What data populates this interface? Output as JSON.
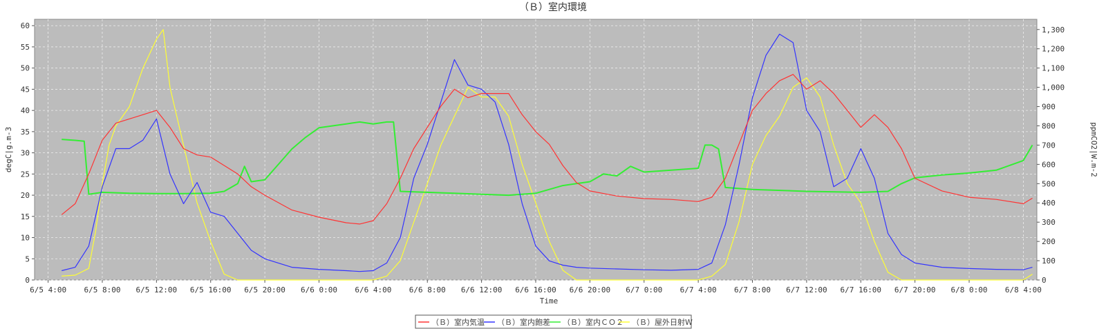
{
  "chart_data": {
    "type": "line",
    "title": "（Ｂ）室内環境",
    "xlabel": "Time",
    "ylabel_left": "degC|g.m-3",
    "ylabel_right": "ppmCO2|W.m-2",
    "xlim": [
      "6/5 3:00",
      "6/8 5:00"
    ],
    "ylim_left": [
      0,
      61.5
    ],
    "ylim_right": [
      0,
      1353
    ],
    "grid": true,
    "legend_position": "bottom-center",
    "x_ticks": [
      "6/5 4:00",
      "6/5 8:00",
      "6/5 12:00",
      "6/5 16:00",
      "6/5 20:00",
      "6/6 0:00",
      "6/6 4:00",
      "6/6 8:00",
      "6/6 12:00",
      "6/6 16:00",
      "6/6 20:00",
      "6/7 0:00",
      "6/7 4:00",
      "6/7 8:00",
      "6/7 12:00",
      "6/7 16:00",
      "6/7 20:00",
      "6/8 0:00",
      "6/8 4:00"
    ],
    "y_ticks_left": [
      "0",
      "5",
      "10",
      "15",
      "20",
      "25",
      "30",
      "35",
      "40",
      "45",
      "50",
      "55",
      "60"
    ],
    "y_ticks_right": [
      "0",
      "100",
      "200",
      "300",
      "400",
      "500",
      "600",
      "700",
      "800",
      "900",
      "1,000",
      "1,100",
      "1,200",
      "1,300"
    ],
    "series": [
      {
        "name": "（Ｂ）室内気温",
        "axis": "left",
        "color": "#ff3333",
        "x": [
          "6/5 5:00",
          "6/5 6:00",
          "6/5 7:00",
          "6/5 8:00",
          "6/5 9:00",
          "6/5 10:00",
          "6/5 11:00",
          "6/5 12:00",
          "6/5 13:00",
          "6/5 14:00",
          "6/5 15:00",
          "6/5 16:00",
          "6/5 17:00",
          "6/5 18:00",
          "6/5 19:00",
          "6/5 20:00",
          "6/5 22:00",
          "6/6 0:00",
          "6/6 2:00",
          "6/6 3:00",
          "6/6 4:00",
          "6/6 5:00",
          "6/6 6:00",
          "6/6 7:00",
          "6/6 8:00",
          "6/6 9:00",
          "6/6 10:00",
          "6/6 11:00",
          "6/6 12:00",
          "6/6 13:00",
          "6/6 14:00",
          "6/6 15:00",
          "6/6 16:00",
          "6/6 17:00",
          "6/6 18:00",
          "6/6 19:00",
          "6/6 20:00",
          "6/6 22:00",
          "6/7 0:00",
          "6/7 2:00",
          "6/7 4:00",
          "6/7 5:00",
          "6/7 6:00",
          "6/7 7:00",
          "6/7 8:00",
          "6/7 9:00",
          "6/7 10:00",
          "6/7 11:00",
          "6/7 12:00",
          "6/7 13:00",
          "6/7 14:00",
          "6/7 15:00",
          "6/7 16:00",
          "6/7 17:00",
          "6/7 18:00",
          "6/7 19:00",
          "6/7 20:00",
          "6/7 22:00",
          "6/8 0:00",
          "6/8 2:00",
          "6/8 4:00",
          "6/8 4:40"
        ],
        "y": [
          15.4,
          18,
          25,
          33,
          37,
          38,
          39,
          40,
          36,
          31,
          29.5,
          29,
          27,
          25,
          22,
          20,
          16.5,
          14.8,
          13.5,
          13.2,
          14,
          18,
          24,
          31,
          36,
          41,
          45,
          43,
          44,
          44,
          44,
          39,
          35,
          32,
          27,
          23,
          21,
          19.8,
          19.2,
          19,
          18.5,
          19.5,
          24,
          32,
          40,
          44,
          47,
          48.5,
          45,
          47,
          44,
          40,
          36,
          39,
          36,
          31,
          24,
          21,
          19.5,
          19,
          18,
          19.3
        ]
      },
      {
        "name": "（Ｂ）室内飽差",
        "axis": "left",
        "color": "#3333ff",
        "x": [
          "6/5 5:00",
          "6/5 6:00",
          "6/5 7:00",
          "6/5 8:00",
          "6/5 9:00",
          "6/5 10:00",
          "6/5 11:00",
          "6/5 12:00",
          "6/5 13:00",
          "6/5 14:00",
          "6/5 15:00",
          "6/5 16:00",
          "6/5 17:00",
          "6/5 18:00",
          "6/5 19:00",
          "6/5 20:00",
          "6/5 22:00",
          "6/6 0:00",
          "6/6 2:00",
          "6/6 3:00",
          "6/6 4:00",
          "6/6 5:00",
          "6/6 6:00",
          "6/6 7:00",
          "6/6 8:00",
          "6/6 9:00",
          "6/6 10:00",
          "6/6 11:00",
          "6/6 12:00",
          "6/6 13:00",
          "6/6 14:00",
          "6/6 15:00",
          "6/6 16:00",
          "6/6 17:00",
          "6/6 18:00",
          "6/6 19:00",
          "6/6 20:00",
          "6/6 22:00",
          "6/7 0:00",
          "6/7 2:00",
          "6/7 4:00",
          "6/7 5:00",
          "6/7 6:00",
          "6/7 7:00",
          "6/7 8:00",
          "6/7 9:00",
          "6/7 10:00",
          "6/7 11:00",
          "6/7 12:00",
          "6/7 13:00",
          "6/7 14:00",
          "6/7 15:00",
          "6/7 16:00",
          "6/7 17:00",
          "6/7 18:00",
          "6/7 19:00",
          "6/7 20:00",
          "6/7 22:00",
          "6/8 0:00",
          "6/8 2:00",
          "6/8 4:00",
          "6/8 4:40"
        ],
        "y": [
          2.2,
          3,
          8,
          22,
          31,
          31,
          33,
          38,
          25,
          18,
          23,
          16,
          15,
          11,
          7,
          5,
          3,
          2.5,
          2.2,
          2,
          2.2,
          4,
          10,
          24,
          32,
          42,
          52,
          46,
          45,
          42,
          32,
          18,
          8,
          4.5,
          3.5,
          3,
          2.8,
          2.6,
          2.4,
          2.3,
          2.5,
          4,
          13,
          27,
          43,
          53,
          58,
          56,
          40,
          35,
          22,
          24,
          31,
          24,
          11,
          6,
          4,
          3,
          2.7,
          2.5,
          2.4,
          3
        ]
      },
      {
        "name": "（Ｂ）室内ＣＯ２",
        "axis": "right",
        "color": "#33ee33",
        "x": [
          "6/5 5:00",
          "6/5 6:00",
          "6/5 6:40",
          "6/5 7:00",
          "6/5 8:00",
          "6/5 10:00",
          "6/5 12:00",
          "6/5 14:00",
          "6/5 16:00",
          "6/5 17:00",
          "6/5 18:00",
          "6/5 18:30",
          "6/5 19:00",
          "6/5 20:00",
          "6/5 21:00",
          "6/5 22:00",
          "6/5 23:00",
          "6/6 0:00",
          "6/6 2:00",
          "6/6 3:00",
          "6/6 4:00",
          "6/6 5:00",
          "6/6 5:30",
          "6/6 6:00",
          "6/6 8:00",
          "6/6 10:00",
          "6/6 12:00",
          "6/6 14:00",
          "6/6 16:00",
          "6/6 18:00",
          "6/6 19:00",
          "6/6 20:00",
          "6/6 21:00",
          "6/6 22:00",
          "6/6 23:00",
          "6/7 0:00",
          "6/7 2:00",
          "6/7 4:00",
          "6/7 4:30",
          "6/7 5:00",
          "6/7 5:30",
          "6/7 6:00",
          "6/7 8:00",
          "6/7 12:00",
          "6/7 16:00",
          "6/7 18:00",
          "6/7 19:00",
          "6/7 20:00",
          "6/7 22:00",
          "6/8 0:00",
          "6/8 2:00",
          "6/8 4:00",
          "6/8 4:40"
        ],
        "y": [
          730,
          725,
          720,
          445,
          455,
          450,
          448,
          448,
          450,
          460,
          500,
          590,
          510,
          520,
          600,
          680,
          740,
          790,
          810,
          820,
          810,
          820,
          820,
          460,
          455,
          450,
          445,
          440,
          450,
          490,
          500,
          510,
          550,
          540,
          590,
          560,
          570,
          580,
          700,
          700,
          680,
          480,
          470,
          460,
          455,
          460,
          500,
          530,
          545,
          555,
          570,
          620,
          700
        ]
      },
      {
        "name": "（Ｂ）屋外日射W",
        "axis": "right",
        "color": "#ffff33",
        "x": [
          "6/5 5:00",
          "6/5 6:00",
          "6/5 7:00",
          "6/5 7:30",
          "6/5 8:00",
          "6/5 8:30",
          "6/5 9:00",
          "6/5 10:00",
          "6/5 11:00",
          "6/5 12:00",
          "6/5 12:30",
          "6/5 13:00",
          "6/5 14:00",
          "6/5 15:00",
          "6/5 16:00",
          "6/5 17:00",
          "6/5 18:00",
          "6/6 4:00",
          "6/6 5:00",
          "6/6 6:00",
          "6/6 7:00",
          "6/6 8:00",
          "6/6 9:00",
          "6/6 10:00",
          "6/6 11:00",
          "6/6 12:00",
          "6/6 13:00",
          "6/6 14:00",
          "6/6 15:00",
          "6/6 16:00",
          "6/6 17:00",
          "6/6 18:00",
          "6/6 19:00",
          "6/7 4:00",
          "6/7 5:00",
          "6/7 6:00",
          "6/7 7:00",
          "6/7 8:00",
          "6/7 9:00",
          "6/7 10:00",
          "6/7 11:00",
          "6/7 12:00",
          "6/7 13:00",
          "6/7 14:00",
          "6/7 15:00",
          "6/7 16:00",
          "6/7 17:00",
          "6/7 18:00",
          "6/7 19:00",
          "6/8 4:00",
          "6/8 4:40"
        ],
        "y": [
          20,
          25,
          60,
          250,
          500,
          700,
          800,
          900,
          1100,
          1250,
          1300,
          1000,
          700,
          400,
          200,
          30,
          0,
          0,
          20,
          100,
          300,
          500,
          700,
          850,
          1000,
          950,
          950,
          850,
          600,
          400,
          200,
          50,
          0,
          0,
          20,
          80,
          300,
          600,
          750,
          850,
          1000,
          1050,
          950,
          700,
          500,
          400,
          200,
          40,
          0,
          0,
          30
        ]
      }
    ]
  },
  "legend": [
    {
      "label": "（Ｂ）室内気温",
      "color": "#ff3333"
    },
    {
      "label": "（Ｂ）室内飽差",
      "color": "#3333ff"
    },
    {
      "label": "（Ｂ）室内ＣＯ２",
      "color": "#33ee33"
    },
    {
      "label": "（Ｂ）屋外日射W",
      "color": "#ffff33"
    }
  ]
}
